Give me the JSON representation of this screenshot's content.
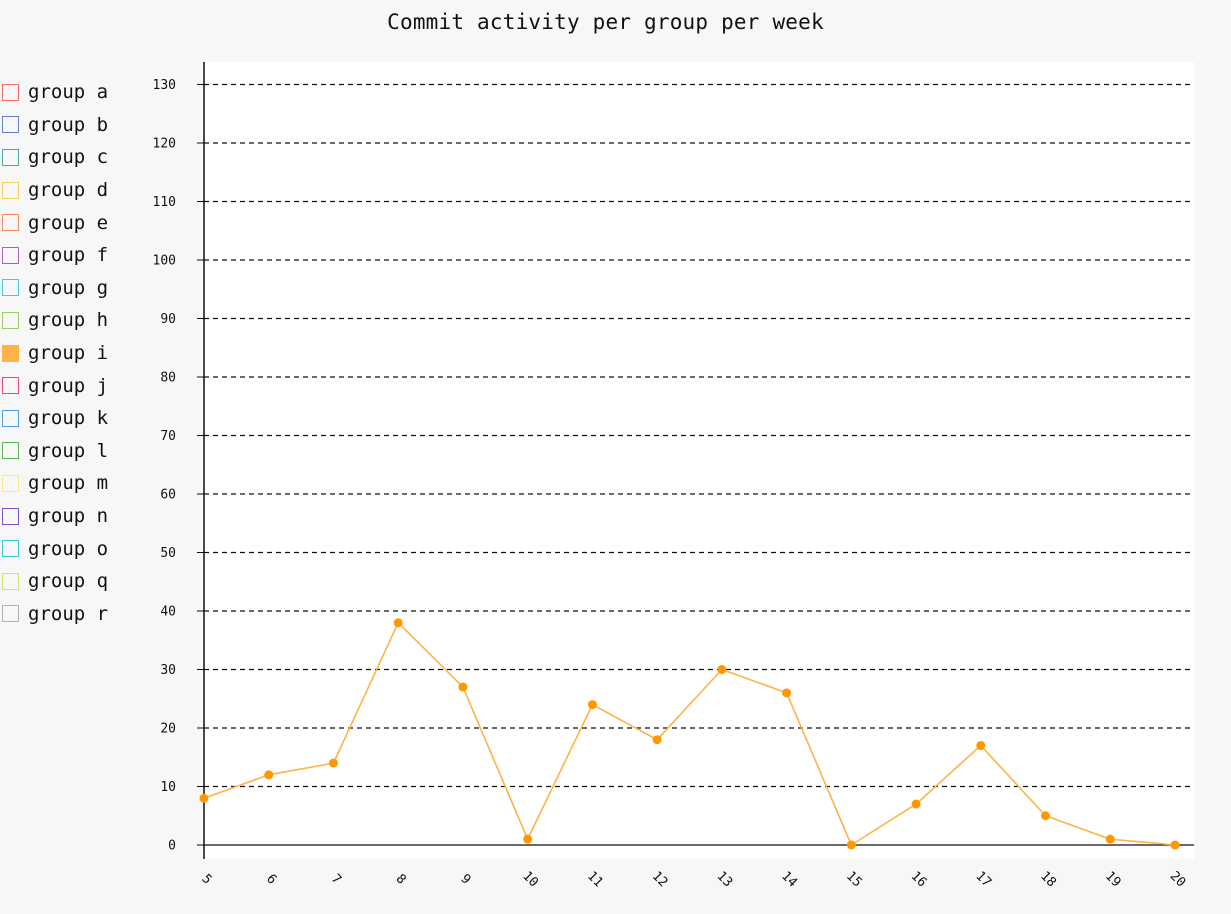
{
  "title": "Commit activity per group per week",
  "legend": [
    {
      "label": "group a",
      "color": "#ef6f6a",
      "active": false
    },
    {
      "label": "group b",
      "color": "#6b7fd0",
      "active": false
    },
    {
      "label": "group c",
      "color": "#3fb0a5",
      "active": false
    },
    {
      "label": "group d",
      "color": "#f5d05b",
      "active": false
    },
    {
      "label": "group e",
      "color": "#f28a5f",
      "active": false
    },
    {
      "label": "group f",
      "color": "#b35ac7",
      "active": false
    },
    {
      "label": "group g",
      "color": "#4fc4e3",
      "active": false
    },
    {
      "label": "group h",
      "color": "#9ccf6b",
      "active": false
    },
    {
      "label": "group i",
      "color": "#ffb347",
      "active": true
    },
    {
      "label": "group j",
      "color": "#e4506e",
      "active": false
    },
    {
      "label": "group k",
      "color": "#4ea1e6",
      "active": false
    },
    {
      "label": "group l",
      "color": "#5cb85c",
      "active": false
    },
    {
      "label": "group m",
      "color": "#fbe88a",
      "active": false
    },
    {
      "label": "group n",
      "color": "#8155c9",
      "active": false
    },
    {
      "label": "group o",
      "color": "#3ccbd6",
      "active": false
    },
    {
      "label": "group q",
      "color": "#d8e26a",
      "active": false
    },
    {
      "label": "group r",
      "color": "#b5b5b5",
      "active": false
    }
  ],
  "chart_data": {
    "type": "line",
    "title": "Commit activity per group per week",
    "xlabel": "",
    "ylabel": "",
    "x": [
      5,
      6,
      7,
      8,
      9,
      10,
      11,
      12,
      13,
      14,
      15,
      16,
      17,
      18,
      19,
      20
    ],
    "ylim": [
      0,
      130
    ],
    "yticks": [
      0,
      10,
      20,
      30,
      40,
      50,
      60,
      70,
      80,
      90,
      100,
      110,
      120,
      130
    ],
    "grid": true,
    "legend_position": "left",
    "series": [
      {
        "name": "group i",
        "color": "#ffb347",
        "point_color": "#ff9800",
        "values": [
          8,
          12,
          14,
          38,
          27,
          1,
          24,
          18,
          30,
          26,
          0,
          7,
          17,
          5,
          1,
          0
        ]
      }
    ]
  }
}
